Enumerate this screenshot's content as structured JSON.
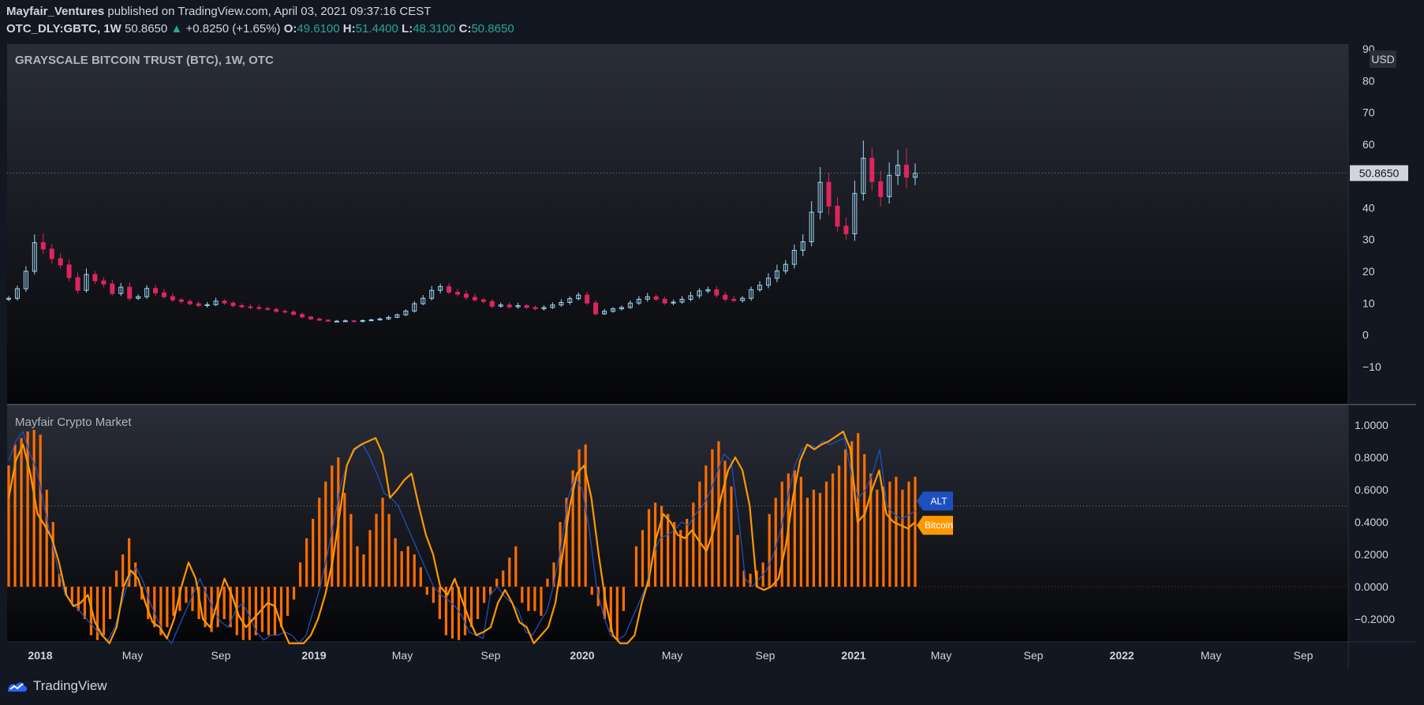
{
  "header": {
    "author": "Mayfair_Ventures",
    "published": "published on TradingView.com, April 03, 2021 09:37:16 CEST",
    "symbol": "OTC_DLY:GBTC, 1W",
    "last": "50.8650",
    "change_icon": "triangle-up-icon",
    "change": "+0.8250 (+1.65%)",
    "o_label": "O:",
    "o": "49.6100",
    "h_label": "H:",
    "h": "51.4400",
    "l_label": "L:",
    "l": "48.3100",
    "c_label": "C:",
    "c": "50.8650"
  },
  "colors": {
    "background": "#131722",
    "up": "#9fd6f5",
    "down": "#e0245e",
    "bars": "#ff6d00",
    "bitcoin": "#ff9800",
    "alt": "#1e4fbf",
    "text": "#d1d4dc"
  },
  "chart_data": [
    {
      "type": "candlestick",
      "title": "GRAYSCALE BITCOIN TRUST (BTC), 1W, OTC",
      "currency": "USD",
      "last_price_label": "50.8650",
      "ylim": [
        -15,
        90
      ],
      "y_ticks": [
        "90",
        "80",
        "70",
        "60",
        "50",
        "40",
        "30",
        "20",
        "10",
        "0",
        "−10"
      ],
      "x_ticks": [
        "2018",
        "May",
        "Sep",
        "2019",
        "May",
        "Sep",
        "2020",
        "May",
        "Sep",
        "2021",
        "May",
        "Sep",
        "2022",
        "May",
        "Sep"
      ],
      "close_series": [
        11.5,
        14.5,
        20,
        29,
        27,
        24,
        22,
        18,
        14,
        19,
        17,
        16,
        13,
        15,
        11.5,
        12,
        14.6,
        13.2,
        12,
        11,
        10.5,
        9.8,
        9.2,
        9.5,
        10.6,
        10,
        9.2,
        8.8,
        8.6,
        8.3,
        8,
        7.4,
        7.2,
        6.4,
        5.6,
        5,
        4.6,
        4.3,
        4.3,
        4.4,
        4.2,
        4.5,
        4.7,
        5,
        5.5,
        6.3,
        7.5,
        9.8,
        11.5,
        14,
        15.2,
        13.4,
        12.8,
        11.8,
        11,
        10.5,
        9,
        9.4,
        8.8,
        9.2,
        8.6,
        8.2,
        8.6,
        9.4,
        10.2,
        11.4,
        12.5,
        10,
        6.6,
        7.4,
        8.2,
        8.6,
        10,
        11.2,
        12,
        11.2,
        10,
        10.3,
        11.2,
        12.3,
        13.8,
        14.2,
        12.5,
        11.2,
        10.8,
        11.5,
        14.2,
        15.6,
        17.8,
        20.1,
        22.2,
        26.6,
        29.3,
        38.6,
        48,
        40.5,
        34.2,
        31.8,
        44.5,
        55.6,
        48.2,
        43.5,
        50.2,
        53.4,
        49.6,
        50.9
      ]
    },
    {
      "type": "bar",
      "title": "Mayfair Crypto Market",
      "ylim": [
        -0.35,
        1.1
      ],
      "y_ticks": [
        "1.0000",
        "0.8000",
        "0.6000",
        "0.4000",
        "0.2000",
        "0.0000",
        "−0.2000"
      ],
      "series": [
        {
          "name": "ALT",
          "type": "line",
          "values": [
            0.78,
            0.9,
            0.96,
            0.82,
            0.72,
            0.5,
            0.3,
            0.1,
            -0.05,
            -0.1,
            -0.15,
            -0.2,
            -0.25,
            -0.3,
            -0.33,
            -0.25,
            -0.1,
            0.05,
            0.12,
            0.03,
            -0.1,
            -0.2,
            -0.3,
            -0.35,
            -0.25,
            -0.15,
            -0.05,
            0.05,
            -0.05,
            -0.15,
            -0.22,
            -0.25,
            -0.15,
            -0.1,
            -0.18,
            -0.28,
            -0.33,
            -0.3,
            -0.3,
            -0.28,
            -0.3,
            -0.35,
            -0.3,
            -0.15,
            0.0,
            0.2,
            0.42,
            0.65,
            0.78,
            0.85,
            0.88,
            0.8,
            0.7,
            0.58,
            0.55,
            0.5,
            0.4,
            0.3,
            0.2,
            0.1,
            0.0,
            -0.05,
            -0.08,
            -0.12,
            -0.18,
            -0.28,
            -0.3,
            -0.32,
            -0.05,
            0.0,
            -0.06,
            -0.1,
            -0.15,
            -0.28,
            -0.3,
            -0.22,
            -0.15,
            0.02,
            0.25,
            0.55,
            0.68,
            0.6,
            0.35,
            0.0,
            -0.18,
            -0.3,
            -0.33,
            -0.3,
            -0.2,
            -0.1,
            0.0,
            0.2,
            0.3,
            0.32,
            0.35,
            0.4,
            0.38,
            0.45,
            0.5,
            0.58,
            0.7,
            0.82,
            0.78,
            0.45,
            0.05,
            0.0,
            0.05,
            0.1,
            0.2,
            0.35,
            0.55,
            0.75,
            0.85,
            0.88,
            0.86,
            0.9,
            0.88,
            0.9,
            0.92,
            0.7,
            0.55,
            0.6,
            0.7,
            0.85,
            0.5,
            0.45,
            0.42,
            0.44,
            0.47
          ]
        },
        {
          "name": "Bitcoin",
          "type": "line",
          "values": [
            0.55,
            0.78,
            0.88,
            0.7,
            0.45,
            0.38,
            0.3,
            0.15,
            -0.05,
            -0.12,
            -0.1,
            -0.05,
            -0.22,
            -0.3,
            -0.38,
            -0.25,
            0.0,
            0.1,
            0.05,
            -0.1,
            -0.22,
            -0.25,
            -0.32,
            -0.2,
            0.0,
            0.15,
            0.05,
            -0.2,
            -0.25,
            -0.1,
            0.05,
            -0.05,
            -0.18,
            -0.25,
            -0.2,
            -0.15,
            -0.1,
            -0.12,
            -0.25,
            -0.35,
            -0.38,
            -0.35,
            -0.3,
            -0.2,
            -0.05,
            0.15,
            0.45,
            0.75,
            0.85,
            0.88,
            0.9,
            0.92,
            0.82,
            0.55,
            0.6,
            0.66,
            0.7,
            0.5,
            0.32,
            0.2,
            0.0,
            -0.05,
            0.05,
            -0.08,
            -0.2,
            -0.3,
            -0.28,
            -0.25,
            -0.1,
            -0.02,
            -0.1,
            -0.22,
            -0.25,
            -0.35,
            -0.3,
            -0.25,
            -0.1,
            0.2,
            0.5,
            0.7,
            0.75,
            0.55,
            0.2,
            -0.1,
            -0.3,
            -0.35,
            -0.38,
            -0.3,
            -0.1,
            0.05,
            0.3,
            0.45,
            0.4,
            0.32,
            0.3,
            0.35,
            0.28,
            0.22,
            0.35,
            0.55,
            0.72,
            0.8,
            0.72,
            0.5,
            0.0,
            -0.02,
            0.0,
            0.05,
            0.25,
            0.55,
            0.78,
            0.88,
            0.85,
            0.88,
            0.9,
            0.93,
            0.96,
            0.85,
            0.4,
            0.45,
            0.6,
            0.72,
            0.45,
            0.4,
            0.38,
            0.36,
            0.4
          ]
        },
        {
          "name": "Histogram",
          "type": "bar",
          "values": [
            0.75,
            0.88,
            0.92,
            0.96,
            0.97,
            0.94,
            0.6,
            0.4,
            0.08,
            -0.05,
            -0.1,
            -0.15,
            -0.2,
            -0.3,
            -0.35,
            -0.3,
            -0.2,
            0.1,
            0.2,
            0.3,
            0.15,
            -0.08,
            -0.2,
            -0.25,
            -0.3,
            -0.25,
            -0.18,
            -0.15,
            -0.1,
            -0.15,
            -0.2,
            -0.25,
            -0.28,
            -0.25,
            -0.2,
            -0.25,
            -0.3,
            -0.33,
            -0.33,
            -0.3,
            -0.28,
            -0.3,
            -0.3,
            -0.25,
            -0.18,
            -0.08,
            0.15,
            0.3,
            0.42,
            0.55,
            0.65,
            0.75,
            0.8,
            0.58,
            0.45,
            0.25,
            0.2,
            0.35,
            0.45,
            0.55,
            0.45,
            0.3,
            0.22,
            0.25,
            0.2,
            0.12,
            -0.05,
            -0.1,
            -0.2,
            -0.3,
            -0.32,
            -0.35,
            -0.3,
            -0.25,
            -0.2,
            -0.1,
            -0.05,
            0.05,
            0.1,
            0.18,
            0.25,
            -0.1,
            -0.15,
            -0.15,
            -0.18,
            0.05,
            0.15,
            0.4,
            0.55,
            0.72,
            0.85,
            0.88,
            -0.05,
            -0.12,
            -0.2,
            -0.28,
            -0.33,
            -0.15,
            0.0,
            0.25,
            0.35,
            0.48,
            0.52,
            0.5,
            0.45,
            0.4,
            0.35,
            0.42,
            0.52,
            0.65,
            0.75,
            0.85,
            0.9,
            0.78,
            0.62,
            0.32,
            0.1,
            0.08,
            0.1,
            0.15,
            0.45,
            0.55,
            0.65,
            0.7,
            0.72,
            0.68,
            0.55,
            0.6,
            0.58,
            0.65,
            0.7,
            0.75,
            0.85,
            0.9,
            0.95,
            0.82,
            0.7,
            0.6,
            0.62,
            0.65,
            0.68,
            0.6,
            0.65,
            0.68
          ]
        }
      ],
      "labels": {
        "alt": "ALT",
        "bitcoin": "Bitcoin"
      }
    }
  ],
  "footer": {
    "brand": "TradingView",
    "logo_icon": "tradingview-logo-icon"
  }
}
